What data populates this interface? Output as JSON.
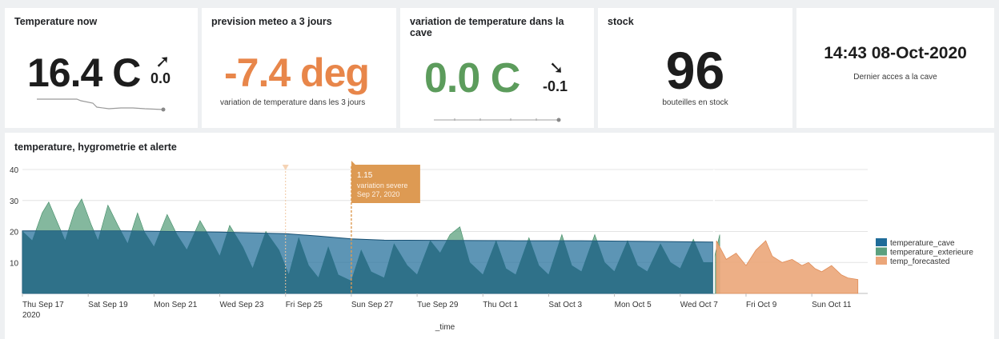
{
  "panels": {
    "temp_now": {
      "title": "Temperature now",
      "value": "16.4 C",
      "arrow_icon": "arrow-up-right",
      "arrow_glyph": "➚",
      "delta": "0.0"
    },
    "forecast": {
      "title": "prevision meteo a 3 jours",
      "value": "-7.4 deg",
      "color": "#e8864a",
      "caption": "variation de temperature dans les 3 jours"
    },
    "cave_variation": {
      "title": "variation de temperature dans la cave",
      "value": "0.0 C",
      "color": "#5c9c5c",
      "arrow_icon": "arrow-down-right",
      "arrow_glyph": "➘",
      "delta": "-0.1"
    },
    "stock": {
      "title": "stock",
      "value": "96",
      "caption": "bouteilles en stock"
    },
    "last_access": {
      "datetime": "14:43 08-Oct-2020",
      "caption": "Dernier acces a la cave"
    }
  },
  "chart_data": {
    "type": "area",
    "title": "temperature, hygrometrie et alerte",
    "xlabel": "_time",
    "ylabel": "",
    "ylim": [
      0,
      40
    ],
    "y_ticks": [
      "10",
      "20",
      "30",
      "40"
    ],
    "x_ticks": [
      {
        "date": "2020-09-17",
        "label": "Thu Sep 17",
        "label2": "2020"
      },
      {
        "date": "2020-09-19",
        "label": "Sat Sep 19"
      },
      {
        "date": "2020-09-21",
        "label": "Mon Sep 21"
      },
      {
        "date": "2020-09-23",
        "label": "Wed Sep 23"
      },
      {
        "date": "2020-09-25",
        "label": "Fri Sep 25"
      },
      {
        "date": "2020-09-27",
        "label": "Sun Sep 27"
      },
      {
        "date": "2020-09-29",
        "label": "Tue Sep 29"
      },
      {
        "date": "2020-10-01",
        "label": "Thu Oct 1"
      },
      {
        "date": "2020-10-03",
        "label": "Sat Oct 3"
      },
      {
        "date": "2020-10-05",
        "label": "Mon Oct 5"
      },
      {
        "date": "2020-10-07",
        "label": "Wed Oct 7"
      },
      {
        "date": "2020-10-09",
        "label": "Fri Oct 9"
      },
      {
        "date": "2020-10-11",
        "label": "Sun Oct 11"
      }
    ],
    "grid": true,
    "legend_position": "right",
    "series": [
      {
        "name": "temperature_cave",
        "color": "#1f6c99",
        "points": [
          [
            "2020-09-17",
            20.2
          ],
          [
            "2020-09-20",
            20.2
          ],
          [
            "2020-09-23",
            19.8
          ],
          [
            "2020-09-25",
            19.3
          ],
          [
            "2020-09-26",
            18.5
          ],
          [
            "2020-09-27",
            17.6
          ],
          [
            "2020-09-28",
            17.2
          ],
          [
            "2020-09-30",
            17.1
          ],
          [
            "2020-10-02",
            17.0
          ],
          [
            "2020-10-04",
            17.0
          ],
          [
            "2020-10-06",
            16.8
          ],
          [
            "2020-10-08",
            16.6
          ]
        ]
      },
      {
        "name": "temperature_exterieure",
        "color": "#5ba07e",
        "points": [
          [
            "2020-09-17",
            20
          ],
          [
            "2020-09-17.3",
            17
          ],
          [
            "2020-09-17.6",
            26
          ],
          [
            "2020-09-17.8",
            29.5
          ],
          [
            "2020-09-18.1",
            22
          ],
          [
            "2020-09-18.3",
            17
          ],
          [
            "2020-09-18.6",
            27
          ],
          [
            "2020-09-18.8",
            30.5
          ],
          [
            "2020-09-19.1",
            22
          ],
          [
            "2020-09-19.3",
            17
          ],
          [
            "2020-09-19.6",
            28.5
          ],
          [
            "2020-09-19.9",
            22
          ],
          [
            "2020-09-20.2",
            16
          ],
          [
            "2020-09-20.5",
            26
          ],
          [
            "2020-09-20.7",
            20
          ],
          [
            "2020-09-21.0",
            15
          ],
          [
            "2020-09-21.4",
            25.5
          ],
          [
            "2020-09-21.7",
            19
          ],
          [
            "2020-09-22.0",
            14
          ],
          [
            "2020-09-22.4",
            23.5
          ],
          [
            "2020-09-22.7",
            18
          ],
          [
            "2020-09-23.0",
            12
          ],
          [
            "2020-09-23.3",
            22
          ],
          [
            "2020-09-23.7",
            15
          ],
          [
            "2020-09-24.0",
            8
          ],
          [
            "2020-09-24.4",
            20
          ],
          [
            "2020-09-24.8",
            14
          ],
          [
            "2020-09-25.1",
            6
          ],
          [
            "2020-09-25.4",
            18
          ],
          [
            "2020-09-25.7",
            9
          ],
          [
            "2020-09-26.0",
            5
          ],
          [
            "2020-09-26.3",
            15
          ],
          [
            "2020-09-26.6",
            6
          ],
          [
            "2020-09-27.0",
            4
          ],
          [
            "2020-09-27.3",
            14
          ],
          [
            "2020-09-27.6",
            7
          ],
          [
            "2020-09-28.0",
            5
          ],
          [
            "2020-09-28.3",
            16
          ],
          [
            "2020-09-28.7",
            9
          ],
          [
            "2020-09-29.0",
            6
          ],
          [
            "2020-09-29.4",
            17
          ],
          [
            "2020-09-29.7",
            13
          ],
          [
            "2020-09-30.0",
            19
          ],
          [
            "2020-09-30.3",
            21.5
          ],
          [
            "2020-09-30.6",
            10
          ],
          [
            "2020-10-01.0",
            6
          ],
          [
            "2020-10-01.4",
            17
          ],
          [
            "2020-10-01.7",
            8
          ],
          [
            "2020-10-02.0",
            6
          ],
          [
            "2020-10-02.4",
            18
          ],
          [
            "2020-10-02.7",
            9
          ],
          [
            "2020-10-03.0",
            6
          ],
          [
            "2020-10-03.4",
            19
          ],
          [
            "2020-10-03.7",
            9
          ],
          [
            "2020-10-04.0",
            7
          ],
          [
            "2020-10-04.4",
            19
          ],
          [
            "2020-10-04.7",
            10
          ],
          [
            "2020-10-05.0",
            7
          ],
          [
            "2020-10-05.4",
            17
          ],
          [
            "2020-10-05.7",
            9
          ],
          [
            "2020-10-06.0",
            7
          ],
          [
            "2020-10-06.4",
            16
          ],
          [
            "2020-10-06.7",
            10
          ],
          [
            "2020-10-07.0",
            8
          ],
          [
            "2020-10-07.4",
            17.5
          ],
          [
            "2020-10-07.7",
            10
          ],
          [
            "2020-10-08.0",
            10
          ],
          [
            "2020-10-08.2",
            19
          ]
        ]
      },
      {
        "name": "temp_forecasted",
        "color": "#eba679",
        "points": [
          [
            "2020-10-08.1",
            17
          ],
          [
            "2020-10-08.4",
            11
          ],
          [
            "2020-10-08.7",
            13
          ],
          [
            "2020-10-09.0",
            9
          ],
          [
            "2020-10-09.3",
            14
          ],
          [
            "2020-10-09.6",
            17
          ],
          [
            "2020-10-09.8",
            12
          ],
          [
            "2020-10-10.1",
            10
          ],
          [
            "2020-10-10.4",
            11
          ],
          [
            "2020-10-10.7",
            9
          ],
          [
            "2020-10-10.9",
            10
          ],
          [
            "2020-10-11.1",
            8
          ],
          [
            "2020-10-11.3",
            7
          ],
          [
            "2020-10-11.6",
            9
          ],
          [
            "2020-10-11.9",
            6
          ],
          [
            "2020-10-12.1",
            5
          ],
          [
            "2020-10-12.4",
            4.5
          ]
        ]
      }
    ],
    "annotations": [
      {
        "date": "2020-09-27",
        "value": "1.15",
        "label": "variation severe",
        "date_label": "Sep 27, 2020",
        "color": "#dd9a53"
      }
    ],
    "markers": [
      {
        "date": "2020-09-25"
      }
    ]
  }
}
